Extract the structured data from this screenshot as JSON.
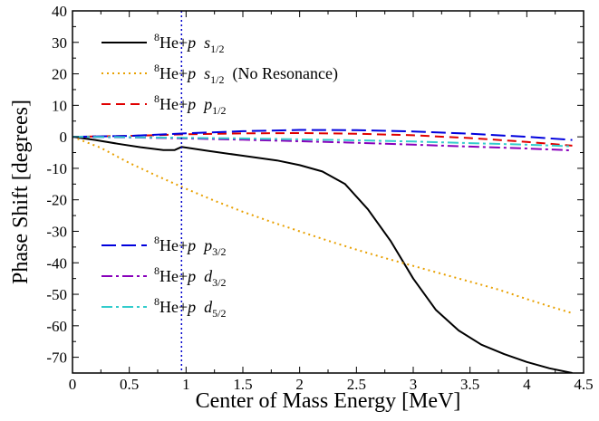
{
  "chart_data": {
    "type": "line",
    "title": "",
    "xlabel": "Center of Mass Energy [MeV]",
    "ylabel": "Phase Shift [degrees]",
    "xlim": [
      0,
      4.5
    ],
    "ylim": [
      -75,
      40
    ],
    "x_ticks": [
      0,
      0.5,
      1,
      1.5,
      2,
      2.5,
      3,
      3.5,
      4,
      4.5
    ],
    "x_tick_labels": [
      "0",
      "0.5",
      "1",
      "1.5",
      "2",
      "2.5",
      "3",
      "3.5",
      "4",
      "4.5"
    ],
    "y_ticks": [
      -70,
      -60,
      -50,
      -40,
      -30,
      -20,
      -10,
      0,
      10,
      20,
      30,
      40
    ],
    "y_tick_labels": [
      "-70",
      "-60",
      "-50",
      "-40",
      "-30",
      "-20",
      "-10",
      "0",
      "10",
      "20",
      "30",
      "40"
    ],
    "grid": false,
    "vertical_line": {
      "x": 0.96,
      "color": "#0000cc",
      "style": "dotted"
    },
    "series": [
      {
        "name": "8He+p s1/2",
        "label": {
          "sup": "8",
          "nucleus": "He+",
          "particle": "p",
          "wave": "s",
          "sub": "1/2",
          "extra": ""
        },
        "color": "#000000",
        "dash": "solid",
        "legend_group": "top",
        "x": [
          0,
          0.2,
          0.4,
          0.6,
          0.8,
          0.9,
          0.96,
          1.0,
          1.2,
          1.5,
          1.8,
          2.0,
          2.2,
          2.4,
          2.6,
          2.8,
          3.0,
          3.2,
          3.4,
          3.6,
          3.8,
          4.0,
          4.2,
          4.4
        ],
        "y": [
          0,
          -1,
          -2.2,
          -3.3,
          -4.2,
          -4.2,
          -3.2,
          -3.4,
          -4.5,
          -6,
          -7.5,
          -9,
          -11,
          -15,
          -23,
          -33,
          -45,
          -55,
          -61.5,
          -66,
          -69,
          -71.5,
          -73.5,
          -75
        ]
      },
      {
        "name": "8He+p s1/2 (No Resonance)",
        "label": {
          "sup": "8",
          "nucleus": "He+",
          "particle": "p",
          "wave": "s",
          "sub": "1/2",
          "extra": "(No Resonance)"
        },
        "color": "#e8a000",
        "dash": "dotted",
        "legend_group": "top",
        "x": [
          0,
          0.25,
          0.5,
          0.75,
          1.0,
          1.25,
          1.5,
          1.75,
          2.0,
          2.25,
          2.5,
          2.75,
          3.0,
          3.25,
          3.5,
          3.75,
          4.0,
          4.2,
          4.4
        ],
        "y": [
          0,
          -3.5,
          -8.3,
          -12.5,
          -16.5,
          -20.3,
          -23.8,
          -27,
          -30,
          -33,
          -35.8,
          -38.5,
          -41,
          -43.5,
          -46,
          -48.5,
          -51.5,
          -53.8,
          -56
        ]
      },
      {
        "name": "8He+p p1/2",
        "label": {
          "sup": "8",
          "nucleus": "He+",
          "particle": "p",
          "wave": "p",
          "sub": "1/2",
          "extra": ""
        },
        "color": "#e00000",
        "dash": "dashed",
        "legend_group": "top",
        "x": [
          0,
          0.5,
          1.0,
          1.5,
          2.0,
          2.5,
          3.0,
          3.5,
          4.0,
          4.4
        ],
        "y": [
          0,
          0.3,
          0.8,
          1.1,
          1.2,
          1,
          0.5,
          -0.4,
          -1.6,
          -2.8
        ]
      },
      {
        "name": "8He+p p3/2",
        "label": {
          "sup": "8",
          "nucleus": "He+",
          "particle": "p",
          "wave": "p",
          "sub": "3/2",
          "extra": ""
        },
        "color": "#0000dd",
        "dash": "longdash",
        "legend_group": "bottom",
        "x": [
          0,
          0.5,
          1.0,
          1.5,
          2.0,
          2.5,
          3.0,
          3.5,
          4.0,
          4.4
        ],
        "y": [
          0,
          0.3,
          1.1,
          1.8,
          2.2,
          2.1,
          1.7,
          1,
          0,
          -1
        ]
      },
      {
        "name": "8He+p d3/2",
        "label": {
          "sup": "8",
          "nucleus": "He+",
          "particle": "p",
          "wave": "d",
          "sub": "3/2",
          "extra": ""
        },
        "color": "#8800bb",
        "dash": "dashdot",
        "legend_group": "bottom",
        "x": [
          0,
          0.5,
          1.0,
          1.5,
          2.0,
          2.5,
          3.0,
          3.5,
          4.0,
          4.4
        ],
        "y": [
          0,
          -0.2,
          -0.5,
          -0.9,
          -1.4,
          -1.9,
          -2.5,
          -3.1,
          -3.7,
          -4.3
        ]
      },
      {
        "name": "8He+p d5/2",
        "label": {
          "sup": "8",
          "nucleus": "He+",
          "particle": "p",
          "wave": "d",
          "sub": "5/2",
          "extra": ""
        },
        "color": "#33cccc",
        "dash": "dashdot",
        "legend_group": "bottom",
        "x": [
          0,
          0.5,
          1.0,
          1.5,
          2.0,
          2.5,
          3.0,
          3.5,
          4.0,
          4.4
        ],
        "y": [
          0,
          -0.1,
          -0.3,
          -0.5,
          -0.8,
          -1.1,
          -1.5,
          -2,
          -2.5,
          -3
        ]
      }
    ]
  }
}
